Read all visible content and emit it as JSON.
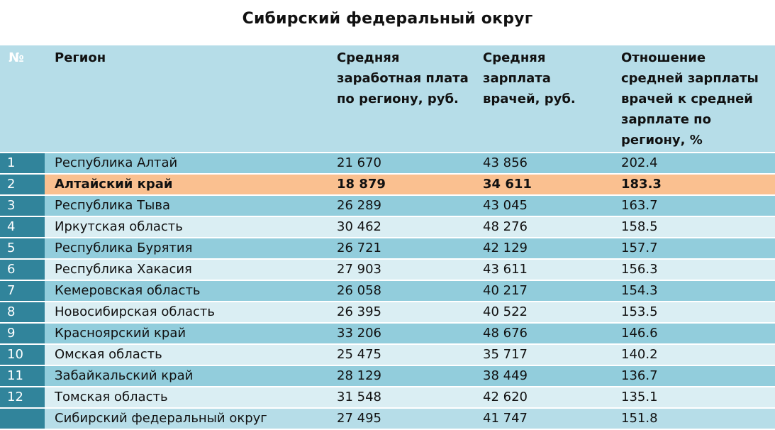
{
  "title": "Сибирский федеральный округ",
  "headers": {
    "num": "№",
    "region": "Регион",
    "avg_salary": "Средняя заработная плата по региону, руб.",
    "doctor_salary": "Средняя зарплата врачей, руб.",
    "ratio": "Отношение средней зарплаты врачей к средней зарплате по региону, %"
  },
  "rows": [
    {
      "num": "1",
      "region": "Республика Алтай",
      "avg": "21 670",
      "doc": "43 856",
      "ratio": "202.4"
    },
    {
      "num": "2",
      "region": "Алтайский край",
      "avg": "18 879",
      "doc": "34 611",
      "ratio": "183.3"
    },
    {
      "num": "3",
      "region": "Республика Тыва",
      "avg": "26 289",
      "doc": "43 045",
      "ratio": "163.7"
    },
    {
      "num": "4",
      "region": "Иркутская область",
      "avg": "30 462",
      "doc": "48 276",
      "ratio": "158.5"
    },
    {
      "num": "5",
      "region": "Республика Бурятия",
      "avg": "26 721",
      "doc": "42 129",
      "ratio": "157.7"
    },
    {
      "num": "6",
      "region": "Республика Хакасия",
      "avg": "27 903",
      "doc": "43 611",
      "ratio": "156.3"
    },
    {
      "num": "7",
      "region": "Кемеровская область",
      "avg": "26 058",
      "doc": "40 217",
      "ratio": "154.3"
    },
    {
      "num": "8",
      "region": "Новосибирская область",
      "avg": "26 395",
      "doc": "40 522",
      "ratio": "153.5"
    },
    {
      "num": "9",
      "region": "Красноярский край",
      "avg": "33 206",
      "doc": "48 676",
      "ratio": "146.6"
    },
    {
      "num": "10",
      "region": "Омская область",
      "avg": "25 475",
      "doc": "35 717",
      "ratio": "140.2"
    },
    {
      "num": "11",
      "region": "Забайкальский край",
      "avg": "28 129",
      "doc": "38 449",
      "ratio": "136.7"
    },
    {
      "num": "12",
      "region": "Томская область",
      "avg": "31 548",
      "doc": "42 620",
      "ratio": "135.1"
    }
  ],
  "total": {
    "num": "",
    "region": "Сибирский федеральный округ",
    "avg": "27 495",
    "doc": "41 747",
    "ratio": "151.8"
  },
  "colors": {
    "header_bg": "#b6dde8",
    "num_col_bg": "#31849b",
    "row_odd_bg": "#92cddc",
    "row_even_bg": "#daeef3",
    "highlight_bg": "#fac090"
  }
}
